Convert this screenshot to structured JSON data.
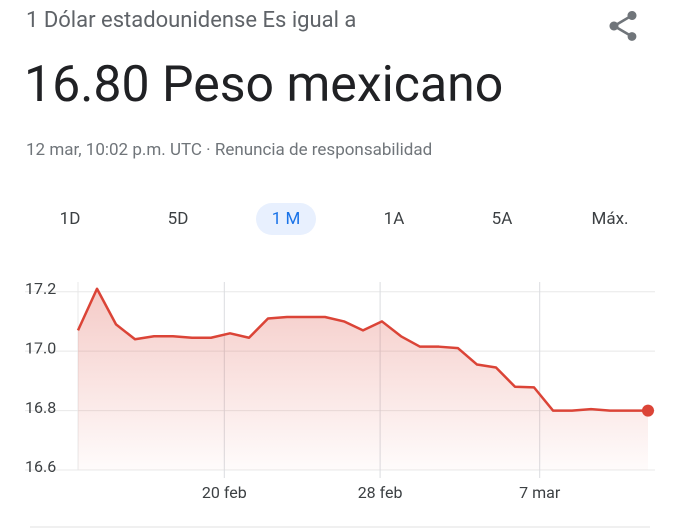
{
  "header": {
    "from": "1 Dólar estadounidense Es igual a",
    "result": "16.80 Peso mexicano",
    "timestamp": "12 mar, 10:02 p.m. UTC · Renuncia de responsabilidad"
  },
  "tabs": [
    "1D",
    "5D",
    "1 M",
    "1A",
    "5A",
    "Máx."
  ],
  "selected_tab": 2,
  "chart_data": {
    "type": "line",
    "color": "#db4437",
    "x": [
      0,
      1,
      2,
      3,
      4,
      5,
      6,
      7,
      8,
      9,
      10,
      11,
      12,
      13,
      14,
      15,
      16,
      17,
      18,
      19,
      20,
      21,
      22,
      23,
      24,
      25,
      26,
      27,
      28,
      29,
      30
    ],
    "values": [
      17.07,
      17.21,
      17.09,
      17.04,
      17.05,
      17.05,
      17.045,
      17.045,
      17.06,
      17.045,
      17.11,
      17.115,
      17.115,
      17.115,
      17.1,
      17.07,
      17.1,
      17.05,
      17.015,
      17.015,
      17.01,
      16.955,
      16.945,
      16.88,
      16.878,
      16.8,
      16.8,
      16.805,
      16.8,
      16.8,
      16.8
    ],
    "xlim": [
      0,
      30
    ],
    "xticks": [
      {
        "value": 7.7,
        "label": "20 feb"
      },
      {
        "value": 15.9,
        "label": "28 feb"
      },
      {
        "value": 24.3,
        "label": "7 mar"
      }
    ],
    "ylim": [
      16.6,
      17.3
    ],
    "yticks": [
      {
        "value": 16.6,
        "label": "16.6"
      },
      {
        "value": 16.8,
        "label": "16.8"
      },
      {
        "value": 17.0,
        "label": "17.0"
      },
      {
        "value": 17.2,
        "label": "17.2"
      }
    ],
    "grid": true
  }
}
